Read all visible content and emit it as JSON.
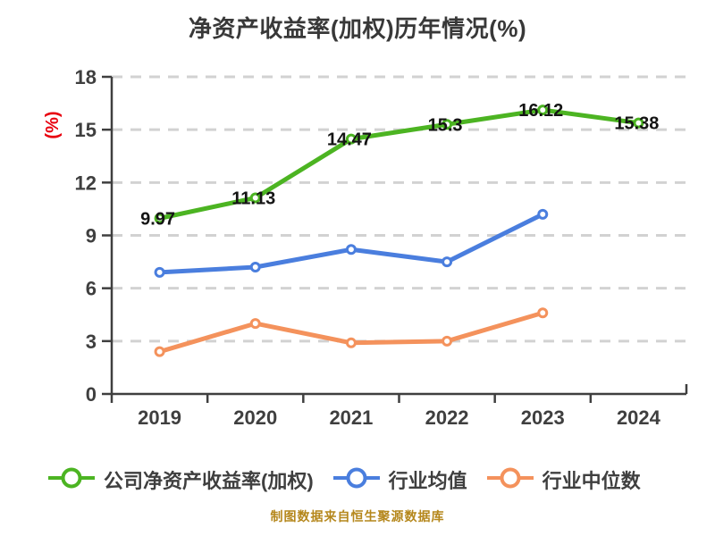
{
  "title": "净资产收益率(加权)历年情况(%)",
  "footer": {
    "text": "制图数据来自恒生聚源数据库"
  },
  "colors": {
    "background": "#ffffff",
    "title_text": "#383838",
    "axis": "#3f3f3f",
    "tick_text": "#3f3f3f",
    "grid": "#d2d2d2",
    "data_label_text": "#141414",
    "y_unit_label": "#e8000f",
    "footer_text": "#b5871c",
    "company_series": "#4cb422",
    "industry_mean_series": "#4a7ede",
    "industry_median_series": "#f4925c"
  },
  "chart_data": {
    "type": "line",
    "title": "净资产收益率(加权)历年情况(%)",
    "xlabel": "",
    "ylabel": "(%)",
    "categories": [
      "2019",
      "2020",
      "2021",
      "2022",
      "2023",
      "2024"
    ],
    "ylim": [
      0,
      18
    ],
    "y_ticks": [
      0,
      3,
      6,
      9,
      12,
      15,
      18
    ],
    "grid": "horizontal-dashed",
    "legend_position": "bottom",
    "marker": "circle-white-fill",
    "series": [
      {
        "name": "公司净资产收益率(加权)",
        "color": "#4cb422",
        "values": [
          9.97,
          11.13,
          14.47,
          15.3,
          16.12,
          15.38
        ],
        "point_labels": [
          "9.97",
          "11.13",
          "14.47",
          "15.3",
          "16.12",
          "15.38"
        ]
      },
      {
        "name": "行业均值",
        "color": "#4a7ede",
        "values": [
          6.9,
          7.2,
          8.2,
          7.5,
          10.2
        ]
      },
      {
        "name": "行业中位数",
        "color": "#f4925c",
        "values": [
          2.4,
          4.0,
          2.9,
          3.0,
          4.6
        ]
      }
    ]
  }
}
